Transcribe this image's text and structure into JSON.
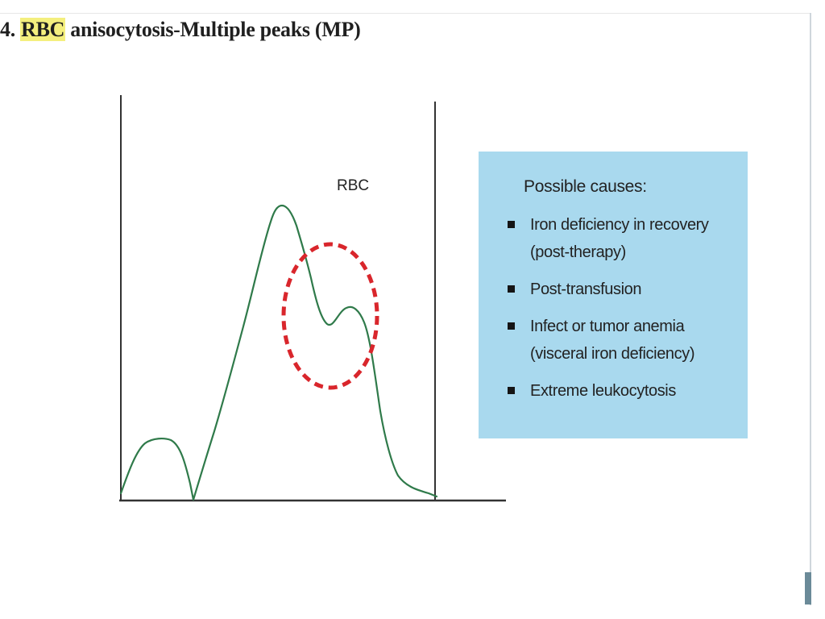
{
  "slide": {
    "title_prefix": "4.",
    "title_highlight": "RBC",
    "title_rest": " anisocytosis-Multiple peaks (MP)"
  },
  "diagram": {
    "curve_label": "RBC",
    "curve_color": "#2f7a4a",
    "circle_color": "#d9262c",
    "axis_color": "#333333"
  },
  "causes": {
    "heading": "Possible causes:",
    "items": [
      {
        "line1": "Iron deficiency in recovery",
        "line2": "(post-therapy)"
      },
      {
        "line1": "Post-transfusion",
        "line2": ""
      },
      {
        "line1": "Infect or tumor anemia",
        "line2": "(visceral iron deficiency)"
      },
      {
        "line1": "Extreme leukocytosis",
        "line2": ""
      }
    ],
    "box_color": "#a9d9ee"
  }
}
